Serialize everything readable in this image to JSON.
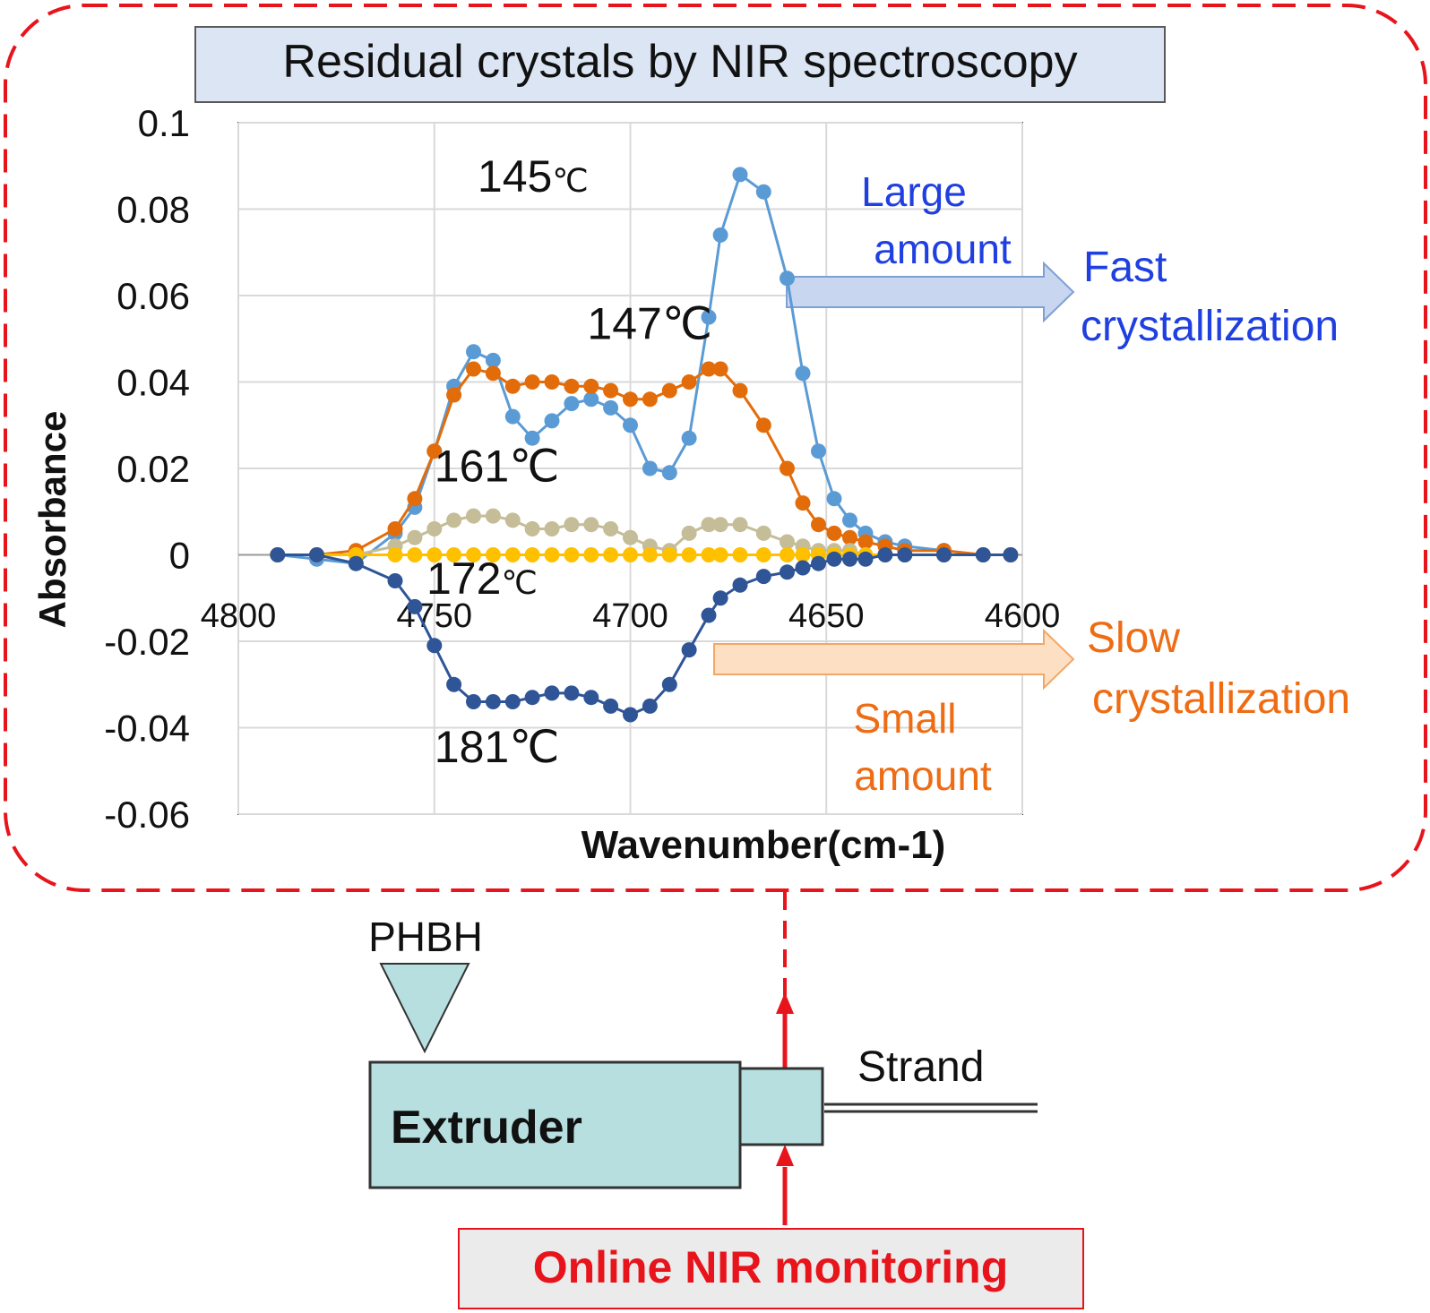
{
  "title": "Residual crystals by NIR spectroscopy",
  "colors": {
    "frame": "#e8141c",
    "title_bg": "#dbe5f3",
    "device_fill": "#b7dfdf",
    "fast": "#1f3fe0",
    "slow": "#ee6c14",
    "arrow_fast_fill": "#c8d7ef",
    "arrow_fast_stroke": "#7fa0d4",
    "arrow_slow_fill": "#fde0c4",
    "arrow_slow_stroke": "#f3a765"
  },
  "chart_data": {
    "type": "line",
    "xlabel": "Wavenumber(cm-1)",
    "ylabel": "Absorbance",
    "xlim": [
      4800,
      4600
    ],
    "x_reversed": true,
    "ylim": [
      -0.06,
      0.1
    ],
    "x_ticks": [
      "4800",
      "4750",
      "4700",
      "4650",
      "4600"
    ],
    "y_ticks": [
      "0.1",
      "0.08",
      "0.06",
      "0.04",
      "0.02",
      "0",
      "-0.02",
      "-0.04",
      "-0.06"
    ],
    "grid": true,
    "x_axis_crosses_y": 0,
    "x": [
      4790,
      4780,
      4770,
      4760,
      4755,
      4750,
      4745,
      4740,
      4735,
      4730,
      4725,
      4720,
      4715,
      4710,
      4705,
      4700,
      4695,
      4690,
      4685,
      4680,
      4677,
      4672,
      4666,
      4660,
      4656,
      4652,
      4648,
      4644,
      4640,
      4635,
      4630,
      4620,
      4610,
      4603
    ],
    "series": [
      {
        "name": "145℃",
        "color": "#5b9bd5",
        "values": [
          0,
          -0.001,
          -0.002,
          0.005,
          0.011,
          0.024,
          0.039,
          0.047,
          0.045,
          0.032,
          0.027,
          0.031,
          0.035,
          0.036,
          0.034,
          0.03,
          0.02,
          0.019,
          0.027,
          0.055,
          0.074,
          0.088,
          0.084,
          0.064,
          0.042,
          0.024,
          0.013,
          0.008,
          0.005,
          0.003,
          0.002,
          0.001,
          0,
          0
        ]
      },
      {
        "name": "147℃",
        "color": "#e36c0a",
        "values": [
          0,
          0,
          0.001,
          0.006,
          0.013,
          0.024,
          0.037,
          0.043,
          0.042,
          0.039,
          0.04,
          0.04,
          0.039,
          0.039,
          0.038,
          0.036,
          0.036,
          0.038,
          0.04,
          0.043,
          0.043,
          0.038,
          0.03,
          0.02,
          0.012,
          0.007,
          0.005,
          0.004,
          0.003,
          0.002,
          0.001,
          0.001,
          0,
          0
        ]
      },
      {
        "name": "161℃",
        "color": "#c4bd97",
        "values": [
          0,
          0,
          0,
          0.002,
          0.004,
          0.006,
          0.008,
          0.009,
          0.009,
          0.008,
          0.006,
          0.006,
          0.007,
          0.007,
          0.006,
          0.004,
          0.002,
          0.001,
          0.005,
          0.007,
          0.007,
          0.007,
          0.005,
          0.003,
          0.002,
          0.001,
          0.001,
          0.001,
          0,
          0,
          0,
          0,
          0,
          0
        ]
      },
      {
        "name": "172℃",
        "color": "#ffc000",
        "values": [
          0,
          0,
          0,
          0,
          0,
          0,
          0,
          0,
          0,
          0,
          0,
          0,
          0,
          0,
          0,
          0,
          0,
          0,
          0,
          0,
          0,
          0,
          0,
          0,
          0,
          0,
          0,
          0,
          0,
          0,
          0,
          0,
          0,
          0
        ]
      },
      {
        "name": "181℃",
        "color": "#2f5597",
        "values": [
          0,
          0,
          -0.002,
          -0.006,
          -0.012,
          -0.021,
          -0.03,
          -0.034,
          -0.034,
          -0.034,
          -0.033,
          -0.032,
          -0.032,
          -0.033,
          -0.035,
          -0.037,
          -0.035,
          -0.03,
          -0.022,
          -0.014,
          -0.01,
          -0.007,
          -0.005,
          -0.004,
          -0.003,
          -0.002,
          -0.001,
          -0.001,
          -0.001,
          0,
          0,
          0,
          0,
          0
        ]
      }
    ],
    "series_labels": [
      {
        "text": "145",
        "unit": "℃",
        "x": 4739,
        "y": 0.084
      },
      {
        "text": "147℃",
        "x": 4711,
        "y": 0.05
      },
      {
        "text": "161℃",
        "x": 4750,
        "y": 0.017
      },
      {
        "text": "172",
        "unit": "℃",
        "x": 4752,
        "y": -0.009
      },
      {
        "text": "181℃",
        "x": 4750,
        "y": -0.048
      }
    ],
    "annotations": {
      "large": [
        "Large",
        "amount"
      ],
      "fast": [
        "Fast",
        "crystallization"
      ],
      "slow": [
        "Slow",
        "crystallization"
      ],
      "small": [
        "Small",
        "amount"
      ]
    }
  },
  "diagram": {
    "hopper_label": "PHBH",
    "extruder_label": "Extruder",
    "strand_label": "Strand",
    "monitor_label": "Online NIR monitoring"
  }
}
